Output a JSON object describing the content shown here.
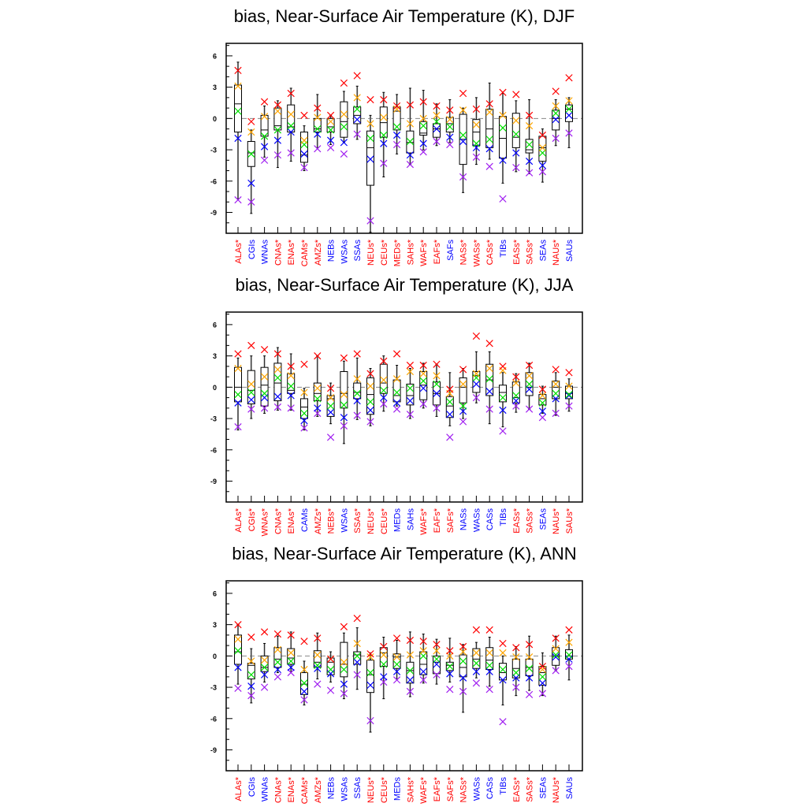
{
  "chart_data": [
    {
      "type": "box",
      "title": "bias, Near-Surface Air Temperature (K), DJF",
      "ylim": [
        -11,
        7.2
      ],
      "yticks": [
        6,
        3,
        0,
        -3,
        -6,
        -9
      ],
      "categories": [
        "ALAs*",
        "CGIs",
        "WNAs",
        "CNAs*",
        "ENAs*",
        "CAMs*",
        "AMZs*",
        "NEBs",
        "WSAs",
        "SSAs",
        "NEUs*",
        "CEUs*",
        "MEDs*",
        "SAHs*",
        "WAFs*",
        "EAFs*",
        "SAFs",
        "NASs*",
        "WASs*",
        "CASs*",
        "TIBs",
        "EASs*",
        "SASs*",
        "SEAs",
        "NAUs*",
        "SAUs"
      ],
      "boxes": [
        [
          -7.7,
          -1.3,
          1.4,
          3.2,
          5.4
        ],
        [
          -9.1,
          -4.6,
          -3.3,
          -2.2,
          -1.1
        ],
        [
          -3.7,
          -1.7,
          -1.1,
          0.3,
          1.2
        ],
        [
          -4.7,
          -1.1,
          -0.7,
          1.0,
          1.7
        ],
        [
          -4.1,
          -1.3,
          -0.8,
          1.3,
          2.9
        ],
        [
          -5.0,
          -4.2,
          -3.5,
          -1.3,
          -0.7
        ],
        [
          -2.8,
          -1.3,
          -1.0,
          0.0,
          2.3
        ],
        [
          -2.5,
          -1.3,
          -0.8,
          0.0,
          0.3
        ],
        [
          -2.3,
          -1.8,
          -0.3,
          1.6,
          2.6
        ],
        [
          -2.0,
          -0.5,
          0.3,
          1.1,
          3.1
        ],
        [
          -10.9,
          -6.4,
          -2.8,
          -1.2,
          0.3
        ],
        [
          -5.6,
          -1.8,
          -0.4,
          1.1,
          2.5
        ],
        [
          -3.4,
          -1.1,
          0.7,
          1.1,
          2.3
        ],
        [
          -4.4,
          -3.3,
          -2.3,
          -1.2,
          2.9
        ],
        [
          -3.0,
          -1.6,
          -1.4,
          -0.3,
          2.7
        ],
        [
          -2.6,
          -1.8,
          -1.0,
          -0.5,
          1.4
        ],
        [
          -2.3,
          -1.3,
          -0.5,
          0.1,
          1.8
        ],
        [
          -7.1,
          -4.4,
          -2.0,
          0.4,
          1.0
        ],
        [
          -4.4,
          -2.6,
          -1.3,
          -0.1,
          2.0
        ],
        [
          -3.9,
          -2.8,
          -1.0,
          0.9,
          3.4
        ],
        [
          -6.2,
          -3.8,
          -1.9,
          0.2,
          2.4
        ],
        [
          -5.1,
          -2.8,
          -1.8,
          0.5,
          1.7
        ],
        [
          -5.3,
          -3.3,
          -3.0,
          -2.0,
          1.8
        ],
        [
          -6.1,
          -4.1,
          -2.8,
          -1.7,
          -1.0
        ],
        [
          -2.6,
          -1.1,
          0.0,
          0.8,
          1.8
        ],
        [
          -2.8,
          -0.3,
          0.9,
          1.3,
          2.0
        ]
      ],
      "markers": {
        "red": [
          4.6,
          -0.3,
          1.6,
          1.3,
          2.4,
          0.3,
          1.0,
          0.3,
          3.4,
          4.1,
          1.8,
          1.8,
          1.2,
          1.3,
          1.6,
          1.2,
          0.8,
          2.4,
          0.9,
          1.4,
          2.5,
          2.3,
          0.3,
          -1.6,
          2.6,
          3.9
        ],
        "orange": [
          3.1,
          -1.3,
          0.2,
          0.7,
          0.4,
          -2.1,
          0.1,
          -0.3,
          0.4,
          2.0,
          -0.5,
          0.1,
          0.9,
          -0.5,
          0.0,
          0.3,
          -0.1,
          0.8,
          -0.6,
          0.6,
          0.3,
          -0.2,
          -0.7,
          -2.8,
          1.2,
          1.7
        ],
        "green": [
          0.7,
          -3.4,
          -1.7,
          -1.1,
          -0.7,
          -2.5,
          -1.0,
          -1.1,
          -0.8,
          0.9,
          -1.9,
          -1.6,
          -0.8,
          -2.2,
          -0.7,
          -0.3,
          -0.8,
          -1.6,
          -2.4,
          -2.0,
          -0.9,
          -1.5,
          -2.5,
          -3.3,
          0.5,
          0.9
        ],
        "blue": [
          -1.9,
          -6.2,
          -2.7,
          -2.1,
          -1.3,
          -3.4,
          -1.5,
          -2.1,
          -2.3,
          -0.1,
          -3.9,
          -2.4,
          -1.6,
          -3.5,
          -2.4,
          -1.0,
          -1.8,
          -2.2,
          -2.8,
          -2.9,
          -4.0,
          -3.3,
          -4.1,
          -4.5,
          -0.1,
          0.3
        ],
        "purple": [
          -7.8,
          -8.0,
          -4.0,
          -3.5,
          -3.3,
          -4.7,
          -2.9,
          -2.8,
          -3.4,
          -1.5,
          -9.8,
          -4.3,
          -2.5,
          -4.4,
          -3.2,
          -2.2,
          -2.5,
          -5.6,
          -3.7,
          -4.6,
          -7.7,
          -4.7,
          -5.2,
          -5.1,
          -1.9,
          -1.4
        ]
      }
    },
    {
      "type": "box",
      "title": "bias, Near-Surface Air Temperature (K), JJA",
      "ylim": [
        -11,
        7.2
      ],
      "yticks": [
        6,
        3,
        0,
        -3,
        -6,
        -9
      ],
      "categories": [
        "ALAs*",
        "CGIs*",
        "WNAs*",
        "CNAs*",
        "ENAs*",
        "CAMs",
        "AMZs*",
        "NEBs*",
        "WSAs",
        "SSAs*",
        "NEUs*",
        "CEUs*",
        "MEDs",
        "SAHs",
        "WAFs*",
        "EAFs*",
        "SAFs*",
        "NASs",
        "WASs",
        "CASs",
        "TIBs",
        "EASs*",
        "SASs*",
        "SEAs",
        "NAUs*",
        "SAUs*"
      ],
      "boxes": [
        [
          -4.1,
          -1.4,
          0.0,
          1.9,
          2.8
        ],
        [
          -3.0,
          -1.6,
          -0.3,
          1.6,
          3.0
        ],
        [
          -2.5,
          -1.8,
          0.2,
          1.9,
          3.0
        ],
        [
          -2.2,
          -1.3,
          0.4,
          2.3,
          3.8
        ],
        [
          -2.2,
          -0.6,
          -0.3,
          1.3,
          3.2
        ],
        [
          -4.1,
          -3.0,
          -1.9,
          -1.1,
          -0.1
        ],
        [
          -2.8,
          -1.3,
          -0.6,
          0.4,
          3.0
        ],
        [
          -3.5,
          -2.8,
          -1.1,
          -0.8,
          0.4
        ],
        [
          -5.4,
          -2.0,
          -0.6,
          1.5,
          2.5
        ],
        [
          -3.1,
          -1.1,
          -0.5,
          0.4,
          2.8
        ],
        [
          -3.7,
          -2.6,
          -0.7,
          0.9,
          1.8
        ],
        [
          -2.3,
          -0.6,
          0.4,
          2.2,
          3.0
        ],
        [
          -1.8,
          -1.4,
          -0.8,
          0.7,
          2.1
        ],
        [
          -3.0,
          -1.7,
          -0.8,
          0.3,
          1.8
        ],
        [
          -2.0,
          -1.2,
          0.2,
          1.5,
          2.3
        ],
        [
          -2.8,
          -1.7,
          -0.6,
          0.5,
          2.2
        ],
        [
          -3.7,
          -2.9,
          -1.8,
          -0.9,
          1.4
        ],
        [
          -3.0,
          -1.5,
          0.0,
          0.9,
          1.8
        ],
        [
          -1.5,
          -0.5,
          1.1,
          1.5,
          3.4
        ],
        [
          -3.5,
          -0.8,
          0.7,
          2.2,
          3.4
        ],
        [
          -3.8,
          -1.4,
          -0.5,
          0.2,
          1.4
        ],
        [
          -2.4,
          -1.5,
          -1.0,
          0.5,
          1.3
        ],
        [
          -2.1,
          -0.8,
          0.0,
          1.4,
          2.3
        ],
        [
          -2.5,
          -1.7,
          -1.1,
          -0.7,
          0.1
        ],
        [
          -2.7,
          -1.1,
          0.0,
          0.6,
          1.4
        ],
        [
          -2.3,
          -1.1,
          -0.6,
          0.1,
          0.8
        ]
      ],
      "markers": {
        "red": [
          3.2,
          4.0,
          3.6,
          3.2,
          2.0,
          2.2,
          3.0,
          -0.1,
          2.8,
          3.2,
          1.3,
          2.5,
          3.2,
          2.1,
          2.1,
          2.2,
          -0.2,
          1.7,
          4.9,
          4.2,
          2.0,
          1.0,
          2.1,
          -0.2,
          1.7,
          1.4
        ],
        "orange": [
          1.8,
          0.3,
          1.0,
          1.7,
          1.1,
          -0.5,
          -0.1,
          -1.0,
          -0.7,
          0.8,
          0.1,
          0.7,
          0.8,
          1.5,
          1.3,
          1.1,
          -0.6,
          0.3,
          1.3,
          1.8,
          1.6,
          0.4,
          1.1,
          -0.8,
          0.3,
          0.1
        ],
        "green": [
          -0.7,
          -0.5,
          -0.6,
          0.9,
          0.1,
          -2.5,
          -1.1,
          -1.8,
          -1.7,
          -0.6,
          -1.4,
          -0.3,
          -0.5,
          -0.1,
          0.6,
          0.3,
          -1.4,
          -1.8,
          0.9,
          0.8,
          -1.0,
          -0.8,
          0.3,
          -1.5,
          -0.6,
          -0.7
        ],
        "blue": [
          -1.5,
          -1.2,
          -1.0,
          -0.9,
          -0.8,
          -3.2,
          -2.0,
          -2.4,
          -2.9,
          -1.3,
          -2.2,
          -1.0,
          -1.5,
          -1.3,
          -0.1,
          -0.6,
          -2.6,
          -2.3,
          0.3,
          -0.4,
          -2.2,
          -1.3,
          -0.2,
          -2.3,
          -1.1,
          -0.8
        ],
        "purple": [
          -3.8,
          -2.1,
          -2.0,
          -1.9,
          -2.0,
          -3.9,
          -2.5,
          -4.8,
          -3.7,
          -2.7,
          -3.3,
          -1.6,
          -2.1,
          -2.6,
          -1.6,
          -2.0,
          -4.8,
          -3.3,
          -1.0,
          -2.1,
          -4.2,
          -1.8,
          -2.1,
          -2.9,
          -2.5,
          -1.8
        ]
      }
    },
    {
      "type": "box",
      "title": "bias, Near-Surface Air Temperature (K), ANN",
      "ylim": [
        -11,
        7.2
      ],
      "yticks": [
        6,
        3,
        0,
        -3,
        -6,
        -9
      ],
      "categories": [
        "ALAs*",
        "CGIs",
        "WNAs",
        "CNAs*",
        "ENAs*",
        "CAMs*",
        "AMZs*",
        "NEBs",
        "WSAs",
        "SSAs",
        "NEUs*",
        "CEUs*",
        "MEDs",
        "SAHs*",
        "WAFs*",
        "EAFs*",
        "SAFs*",
        "NASs*",
        "WASs",
        "CASs",
        "TIBs",
        "EASs*",
        "SASs*",
        "SEAs",
        "NAUs*",
        "SAUs"
      ],
      "boxes": [
        [
          -2.7,
          -0.8,
          0.4,
          2.0,
          3.0
        ],
        [
          -4.5,
          -2.2,
          -0.9,
          -0.7,
          0.7
        ],
        [
          -2.5,
          -1.5,
          -1.1,
          0.0,
          1.2
        ],
        [
          -1.6,
          -1.1,
          -0.3,
          0.8,
          1.9
        ],
        [
          -1.5,
          -0.8,
          -0.2,
          0.7,
          2.3
        ],
        [
          -4.7,
          -3.7,
          -2.7,
          -1.6,
          -0.5
        ],
        [
          -2.2,
          -1.1,
          -0.6,
          0.5,
          2.2
        ],
        [
          -2.5,
          -1.8,
          -0.6,
          -0.2,
          0.4
        ],
        [
          -4.1,
          -2.0,
          -0.8,
          1.3,
          2.2
        ],
        [
          -3.2,
          -0.8,
          0.1,
          0.4,
          2.7
        ],
        [
          -7.3,
          -3.5,
          -1.8,
          -0.4,
          0.3
        ],
        [
          -4.1,
          -1.0,
          0.3,
          0.8,
          1.8
        ],
        [
          -2.2,
          -1.2,
          -0.1,
          0.2,
          1.5
        ],
        [
          -3.9,
          -2.6,
          -1.4,
          -0.6,
          2.3
        ],
        [
          -2.6,
          -1.8,
          -0.8,
          0.4,
          2.1
        ],
        [
          -2.7,
          -1.7,
          -0.6,
          0.0,
          1.6
        ],
        [
          -2.5,
          -1.4,
          -0.9,
          -0.6,
          1.7
        ],
        [
          -5.4,
          -2.0,
          -1.1,
          0.1,
          1.1
        ],
        [
          -2.1,
          -1.2,
          -0.3,
          0.7,
          1.3
        ],
        [
          -2.9,
          -1.3,
          -0.4,
          0.8,
          1.8
        ],
        [
          -4.7,
          -2.3,
          -1.6,
          -0.7,
          0.0
        ],
        [
          -3.8,
          -2.1,
          -1.2,
          -0.3,
          0.9
        ],
        [
          -3.3,
          -1.9,
          -1.1,
          -0.3,
          1.9
        ],
        [
          -3.8,
          -2.8,
          -1.6,
          -1.0,
          0.3
        ],
        [
          -1.4,
          -0.9,
          0.0,
          0.8,
          1.9
        ],
        [
          -2.3,
          -0.3,
          0.0,
          0.6,
          2.0
        ]
      ],
      "markers": {
        "red": [
          3.0,
          1.8,
          2.3,
          2.1,
          2.0,
          1.4,
          1.7,
          -0.3,
          2.8,
          3.6,
          0.2,
          0.9,
          1.7,
          1.5,
          1.4,
          1.1,
          0.5,
          0.9,
          2.5,
          2.5,
          1.2,
          0.8,
          1.1,
          -1.0,
          1.7,
          2.5
        ],
        "orange": [
          1.6,
          -0.5,
          -0.4,
          0.6,
          0.3,
          -1.3,
          0.1,
          -0.3,
          -0.6,
          1.2,
          -0.1,
          0.1,
          -0.1,
          0.1,
          0.5,
          0.5,
          0.0,
          0.4,
          0.3,
          0.3,
          0.3,
          -0.1,
          -0.1,
          -1.3,
          0.7,
          1.3
        ],
        "green": [
          0.5,
          -1.8,
          -1.1,
          -0.6,
          -0.5,
          -2.6,
          -0.9,
          -1.3,
          -1.3,
          0.0,
          -1.6,
          -0.8,
          -0.8,
          -1.4,
          0.0,
          -0.3,
          -1.0,
          -0.5,
          -0.7,
          -0.9,
          -1.3,
          -1.6,
          -1.2,
          -2.0,
          0.1,
          0.1
        ],
        "blue": [
          -1.1,
          -2.9,
          -1.8,
          -1.3,
          -1.1,
          -3.4,
          -1.2,
          -1.7,
          -2.7,
          -0.6,
          -2.8,
          -2.0,
          -1.5,
          -2.3,
          -1.5,
          -0.8,
          -1.7,
          -2.1,
          -1.5,
          -1.5,
          -2.3,
          -2.1,
          -2.1,
          -2.6,
          -0.1,
          -0.3
        ],
        "purple": [
          -3.1,
          -3.8,
          -3.0,
          -2.0,
          -1.6,
          -4.2,
          -2.7,
          -3.3,
          -3.6,
          -1.8,
          -6.2,
          -2.5,
          -2.3,
          -3.4,
          -2.3,
          -1.8,
          -3.2,
          -3.4,
          -2.6,
          -3.2,
          -6.3,
          -3.0,
          -3.7,
          -3.6,
          -1.4,
          -1.0
        ]
      }
    }
  ],
  "colors": {
    "red": "#ff0000",
    "orange": "#ffa500",
    "green": "#00e000",
    "blue": "#0000ff",
    "purple": "#a020f0",
    "label_starred": "#ff0000",
    "label_plain": "#0000ff"
  }
}
